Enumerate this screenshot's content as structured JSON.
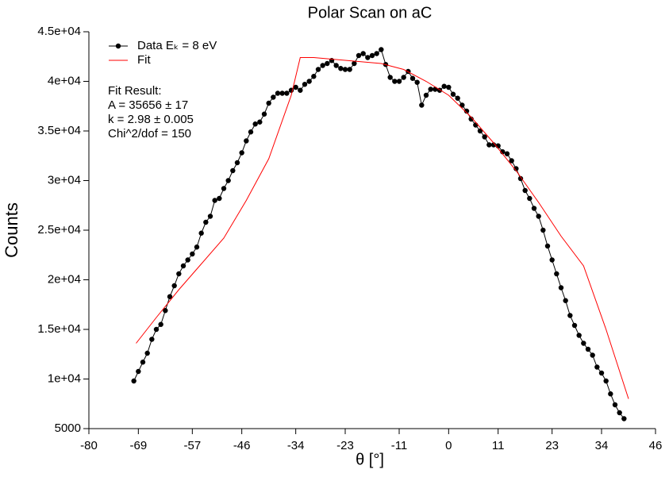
{
  "chart_data": {
    "type": "line",
    "title": "Polar Scan on aC",
    "x_label": "θ [°]",
    "y_label": "Counts",
    "xlim": [
      -80,
      46
    ],
    "xticks": [
      -80,
      -69,
      -57,
      -46,
      -34,
      -23,
      -11,
      0,
      11,
      23,
      34,
      46
    ],
    "ylim": [
      5000,
      45000
    ],
    "yticks": [
      5000,
      {
        "value": 10000,
        "label": "1e+04"
      },
      {
        "value": 15000,
        "label": "1.5e+04"
      },
      {
        "value": 20000,
        "label": "2e+04"
      },
      {
        "value": 25000,
        "label": "2.5e+04"
      },
      {
        "value": 30000,
        "label": "3e+04"
      },
      {
        "value": 35000,
        "label": "3.5e+04"
      },
      {
        "value": 40000,
        "label": "4e+04"
      },
      {
        "value": 45000,
        "label": "4.5e+04"
      }
    ],
    "legend": "top-left",
    "annotations": [
      "Fit Result:",
      "A = 35656 ± 17",
      "k = 2.98 ± 0.005",
      "Chi^2/dof = 150"
    ],
    "series": [
      {
        "name": "Data Eₖ = 8 eV",
        "color": "#000000",
        "markers": true,
        "x": [
          -70,
          -69,
          -68,
          -67,
          -66,
          -65,
          -64,
          -63,
          -62,
          -61,
          -60,
          -59,
          -58,
          -57,
          -56,
          -55,
          -54,
          -53,
          -52,
          -51,
          -50,
          -49,
          -48,
          -47,
          -46,
          -45,
          -44,
          -43,
          -42,
          -41,
          -40,
          -39,
          -38,
          -37,
          -36,
          -35,
          -34,
          -33,
          -32,
          -31,
          -30,
          -29,
          -28,
          -27,
          -26,
          -25,
          -24,
          -23,
          -22,
          -21,
          -20,
          -19,
          -18,
          -17,
          -16,
          -15,
          -14,
          -13,
          -12,
          -11,
          -10,
          -9,
          -8,
          -7,
          -6,
          -5,
          -4,
          -3,
          -2,
          -1,
          0,
          1,
          2,
          3,
          4,
          5,
          6,
          7,
          8,
          9,
          10,
          11,
          12,
          13,
          14,
          15,
          16,
          17,
          18,
          19,
          20,
          21,
          22,
          23,
          24,
          25,
          26,
          27,
          28,
          29,
          30,
          31,
          32,
          33,
          34,
          35,
          36,
          37,
          38,
          39
        ],
        "values": [
          9800,
          10760,
          11700,
          12600,
          14000,
          15000,
          15500,
          16900,
          18300,
          19400,
          20600,
          21400,
          22000,
          22600,
          23300,
          24700,
          25800,
          26400,
          28000,
          28200,
          29200,
          30000,
          31000,
          31800,
          32800,
          34000,
          34900,
          35700,
          35900,
          36700,
          37800,
          38400,
          38800,
          38800,
          38800,
          39100,
          39400,
          39100,
          39700,
          40000,
          40500,
          41200,
          41600,
          41800,
          42100,
          41600,
          41300,
          41200,
          41200,
          41800,
          42600,
          42800,
          42400,
          42600,
          42800,
          43200,
          41700,
          40400,
          40000,
          40000,
          40400,
          41000,
          40300,
          39900,
          37600,
          38600,
          39200,
          39200,
          39100,
          39500,
          39400,
          38700,
          38300,
          37600,
          37000,
          36200,
          35600,
          35000,
          34400,
          33600,
          33600,
          33500,
          32900,
          32700,
          32000,
          31200,
          30200,
          29000,
          28200,
          27200,
          26400,
          25000,
          23400,
          22000,
          20600,
          19200,
          17900,
          16400,
          15400,
          14400,
          13600,
          13000,
          12400,
          11200,
          10600,
          9800,
          8500,
          7400,
          6600,
          6000
        ]
      },
      {
        "name": "Fit",
        "color": "#ff0000",
        "markers": false,
        "x": [
          -69.5,
          -65,
          -60,
          -55,
          -50,
          -45,
          -40,
          -35,
          -33,
          -30,
          -25,
          -20,
          -15,
          -10,
          -5,
          0,
          5,
          10,
          15,
          20,
          25,
          30,
          35,
          40
        ],
        "values": [
          13600,
          16200,
          19000,
          21600,
          24200,
          28000,
          32200,
          38600,
          42400,
          42400,
          42200,
          42000,
          41800,
          41200,
          40000,
          38600,
          36400,
          33800,
          31000,
          27800,
          24400,
          21400,
          15000,
          8000
        ]
      }
    ]
  }
}
